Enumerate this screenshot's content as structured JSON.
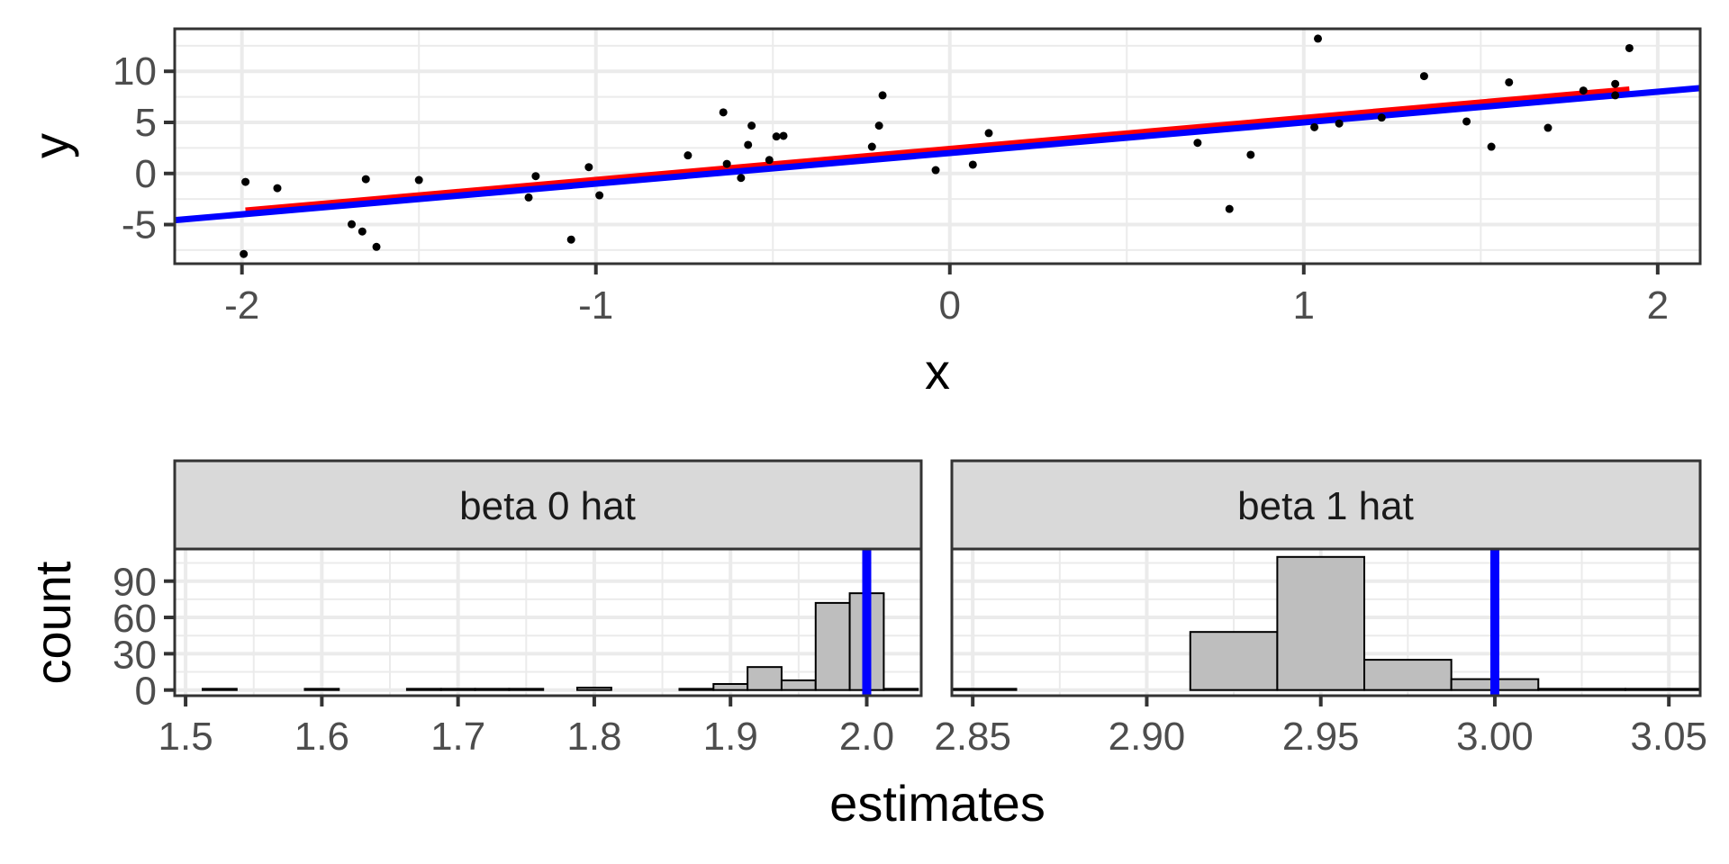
{
  "chart_data": [
    {
      "id": "scatter",
      "type": "scatter",
      "title": "",
      "xlabel": "x",
      "ylabel": "y",
      "xlim": [
        -2.19,
        2.12
      ],
      "ylim": [
        -8.83,
        14.16
      ],
      "xticks": [
        -2,
        -1,
        0,
        1,
        2
      ],
      "xtick_labels": [
        "-2",
        "-1",
        "0",
        "1",
        "2"
      ],
      "yticks": [
        -5,
        0,
        5,
        10
      ],
      "ytick_labels": [
        "-5",
        "0",
        "5",
        "10"
      ],
      "grid": true,
      "points": [
        [
          -1.99,
          -0.82
        ],
        [
          -1.9,
          -1.44
        ],
        [
          -1.995,
          -7.88
        ],
        [
          -1.69,
          -4.97
        ],
        [
          -1.66,
          -5.68
        ],
        [
          -1.62,
          -7.18
        ],
        [
          -1.65,
          -0.56
        ],
        [
          -1.5,
          -0.64
        ],
        [
          -1.17,
          -0.26
        ],
        [
          -1.19,
          -2.35
        ],
        [
          -1.07,
          -6.47
        ],
        [
          -1.02,
          0.62
        ],
        [
          -0.99,
          -2.14
        ],
        [
          -0.74,
          1.77
        ],
        [
          -0.64,
          5.98
        ],
        [
          -0.56,
          4.68
        ],
        [
          -0.57,
          2.8
        ],
        [
          -0.63,
          0.94
        ],
        [
          -0.59,
          -0.44
        ],
        [
          -0.49,
          3.62
        ],
        [
          -0.47,
          3.68
        ],
        [
          -0.51,
          1.32
        ],
        [
          -0.19,
          7.65
        ],
        [
          -0.2,
          4.68
        ],
        [
          -0.22,
          2.62
        ],
        [
          -0.04,
          0.33
        ],
        [
          0.065,
          0.86
        ],
        [
          0.11,
          3.95
        ],
        [
          0.7,
          3.0
        ],
        [
          0.85,
          1.83
        ],
        [
          0.79,
          -3.47
        ],
        [
          1.04,
          13.2
        ],
        [
          1.03,
          4.53
        ],
        [
          1.1,
          4.89
        ],
        [
          1.22,
          5.47
        ],
        [
          1.34,
          9.53
        ],
        [
          1.46,
          5.09
        ],
        [
          1.53,
          2.62
        ],
        [
          1.58,
          8.92
        ],
        [
          1.69,
          4.47
        ],
        [
          1.79,
          8.12
        ],
        [
          1.88,
          8.77
        ],
        [
          1.88,
          7.65
        ],
        [
          1.92,
          12.27
        ]
      ],
      "lines": [
        {
          "name": "fitted",
          "color": "#ff0000",
          "intercept": 2.4,
          "slope": 3.03,
          "x_range": [
            -1.99,
            1.92
          ]
        },
        {
          "name": "true",
          "color": "#0000ff",
          "intercept": 2.0,
          "slope": 3.0,
          "x_range": "full"
        }
      ]
    },
    {
      "id": "hist-beta0",
      "type": "bar",
      "facet_label": "beta 0 hat",
      "xlabel": "estimates",
      "ylabel": "count",
      "xlim": [
        1.492,
        2.04
      ],
      "ylim": [
        0,
        113
      ],
      "xticks": [
        1.5,
        1.6,
        1.7,
        1.8,
        1.9,
        2.0
      ],
      "xtick_labels": [
        "1.5",
        "1.6",
        "1.7",
        "1.8",
        "1.9",
        "2.0"
      ],
      "yticks": [
        0,
        30,
        60,
        90
      ],
      "ytick_labels": [
        "0",
        "30",
        "60",
        "90"
      ],
      "bin_width": 0.025,
      "bin_starts": [
        1.5125,
        1.5375,
        1.5625,
        1.5875,
        1.6125,
        1.6375,
        1.6625,
        1.6875,
        1.7125,
        1.7375,
        1.7625,
        1.7875,
        1.8125,
        1.8375,
        1.8625,
        1.8875,
        1.9125,
        1.9375,
        1.9625,
        1.9875,
        2.0125
      ],
      "counts": [
        1,
        0,
        0,
        1,
        0,
        0,
        1,
        1,
        1,
        1,
        0,
        2,
        0,
        0,
        1,
        5,
        19,
        8,
        72,
        80,
        1
      ],
      "vline": {
        "x": 2.0,
        "color": "#0000ff"
      },
      "bar_fill": "#bebebe"
    },
    {
      "id": "hist-beta1",
      "type": "bar",
      "facet_label": "beta 1 hat",
      "xlabel": "estimates",
      "ylabel": "count",
      "xlim": [
        2.844,
        3.059
      ],
      "ylim": [
        0,
        113
      ],
      "xticks": [
        2.85,
        2.9,
        2.95,
        3.0,
        3.05
      ],
      "xtick_labels": [
        "2.85",
        "2.90",
        "2.95",
        "3.00",
        "3.05"
      ],
      "yticks": [
        0,
        30,
        60,
        90
      ],
      "ytick_labels": [
        "0",
        "30",
        "60",
        "90"
      ],
      "bin_width": 0.025,
      "bin_starts": [
        2.8375,
        2.8625,
        2.8875,
        2.9125,
        2.9375,
        2.9625,
        2.9875,
        3.0125,
        3.0375
      ],
      "counts": [
        1,
        0,
        0,
        48,
        110,
        25,
        9,
        1,
        1
      ],
      "vline": {
        "x": 3.0,
        "color": "#0000ff"
      },
      "bar_fill": "#bebebe"
    }
  ],
  "labels": {
    "scatter_x_title": "x",
    "scatter_y_title": "y",
    "hist_x_title": "estimates",
    "hist_y_title": "count",
    "facet_beta0": "beta 0 hat",
    "facet_beta1": "beta 1 hat"
  }
}
